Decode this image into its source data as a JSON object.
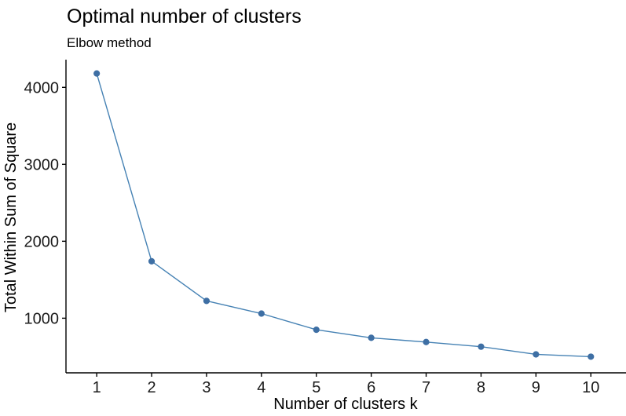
{
  "chart_data": {
    "type": "line",
    "title": "Optimal number of clusters",
    "subtitle": "Elbow method",
    "xlabel": "Number of clusters k",
    "ylabel": "Total Within Sum of Square",
    "series": [
      {
        "name": "Total Within Sum of Square",
        "x": [
          1,
          2,
          3,
          4,
          5,
          6,
          7,
          8,
          9,
          10
        ],
        "y": [
          4180,
          1740,
          1225,
          1060,
          850,
          745,
          690,
          630,
          530,
          500
        ]
      }
    ],
    "xticks": [
      1,
      2,
      3,
      4,
      5,
      6,
      7,
      8,
      9,
      10
    ],
    "yticks": [
      1000,
      2000,
      3000,
      4000
    ],
    "xlim": [
      0.44,
      10.64
    ],
    "ylim": [
      290,
      4360
    ],
    "grid": false,
    "legend_position": "none",
    "marker": "circle",
    "line_color": "#4682B4",
    "point_color": "#3e6fa4",
    "axis_color": "#000000",
    "text_color": "#000000",
    "background_color": "#ffffff"
  }
}
